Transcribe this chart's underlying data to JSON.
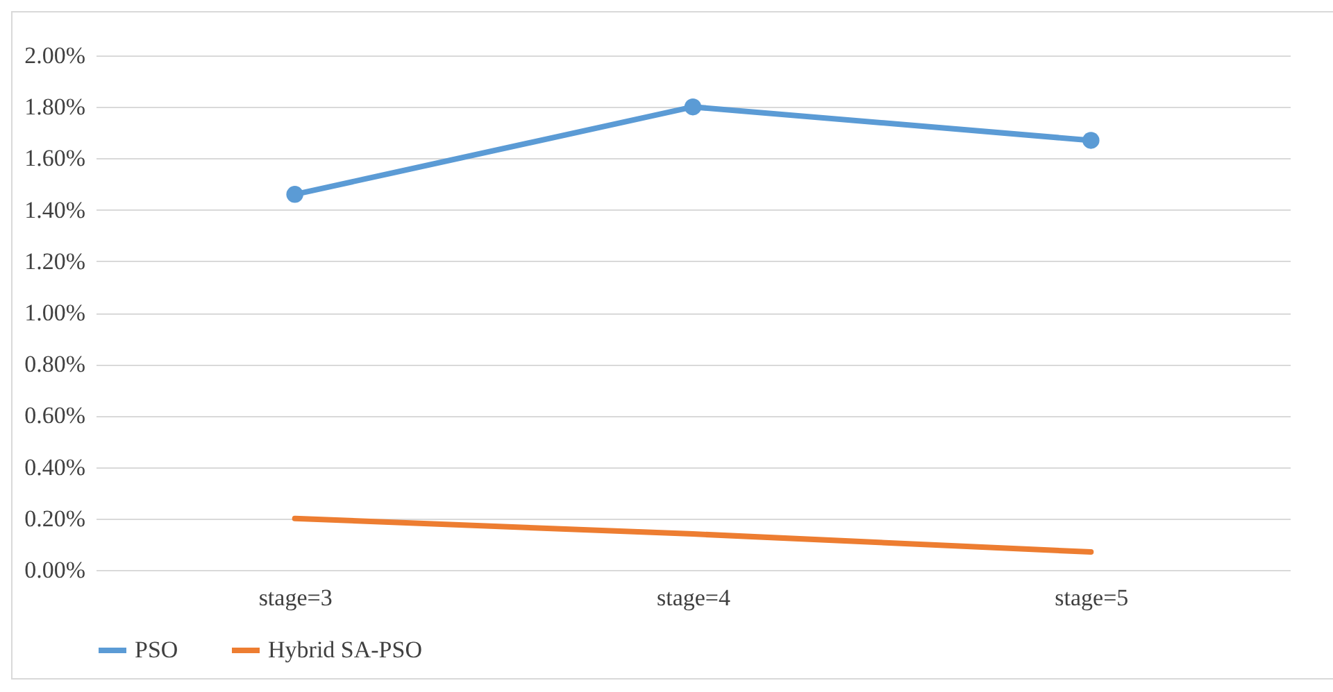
{
  "chart_data": {
    "type": "line",
    "categories": [
      "stage=3",
      "stage=4",
      "stage=5"
    ],
    "series": [
      {
        "name": "PSO",
        "color": "#5b9bd5",
        "values": [
          1.46,
          1.8,
          1.67
        ],
        "marker": "circle"
      },
      {
        "name": "Hybrid SA-PSO",
        "color": "#ed7d31",
        "values": [
          0.2,
          0.14,
          0.07
        ],
        "marker": "none"
      }
    ],
    "ylim": [
      0,
      2
    ],
    "yticks": [
      {
        "value": 0,
        "label": "0.00%"
      },
      {
        "value": 0.2,
        "label": "0.20%"
      },
      {
        "value": 0.4,
        "label": "0.40%"
      },
      {
        "value": 0.6,
        "label": "0.60%"
      },
      {
        "value": 0.8,
        "label": "0.80%"
      },
      {
        "value": 1,
        "label": "1.00%"
      },
      {
        "value": 1.2,
        "label": "1.20%"
      },
      {
        "value": 1.4,
        "label": "1.40%"
      },
      {
        "value": 1.6,
        "label": "1.60%"
      },
      {
        "value": 1.8,
        "label": "1.80%"
      },
      {
        "value": 2,
        "label": "2.00%"
      }
    ],
    "grid": "y",
    "legend": "bottom",
    "line_style": "solid"
  }
}
